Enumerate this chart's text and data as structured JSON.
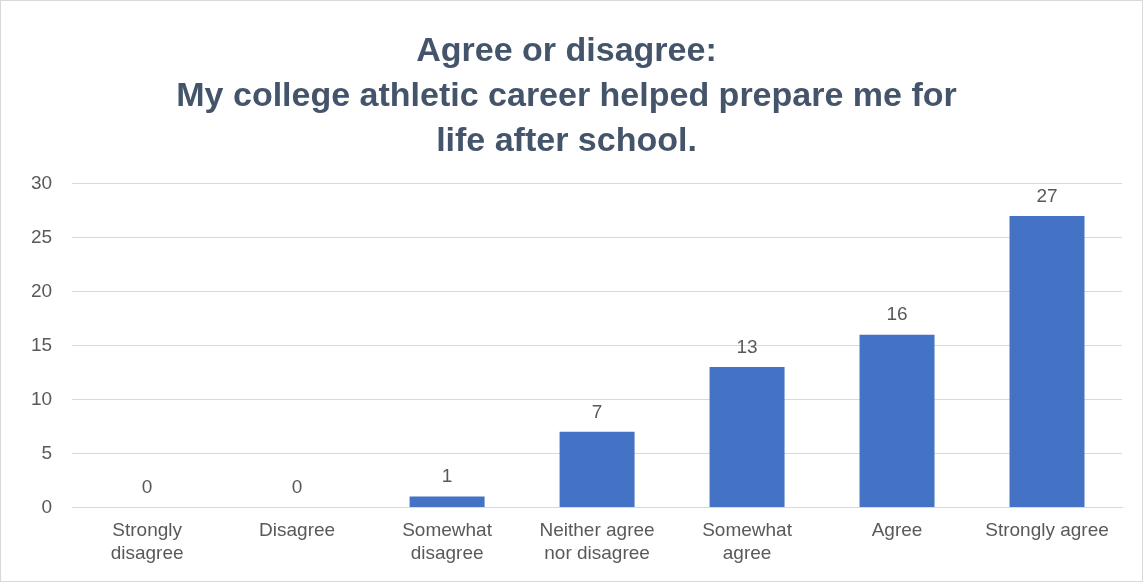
{
  "chart_data": {
    "type": "bar",
    "title": "Agree or disagree:\nMy college athletic career helped prepare me for\nlife after school.",
    "categories": [
      "Strongly disagree",
      "Disagree",
      "Somewhat disagree",
      "Neither agree nor disagree",
      "Somewhat agree",
      "Agree",
      "Strongly agree"
    ],
    "values": [
      0,
      0,
      1,
      7,
      13,
      16,
      27
    ],
    "color": "#4472c4",
    "ylim": [
      0,
      30
    ],
    "yticks": [
      0,
      5,
      10,
      15,
      20,
      25,
      30
    ],
    "grid": "y",
    "data_labels": true,
    "legend": false
  }
}
